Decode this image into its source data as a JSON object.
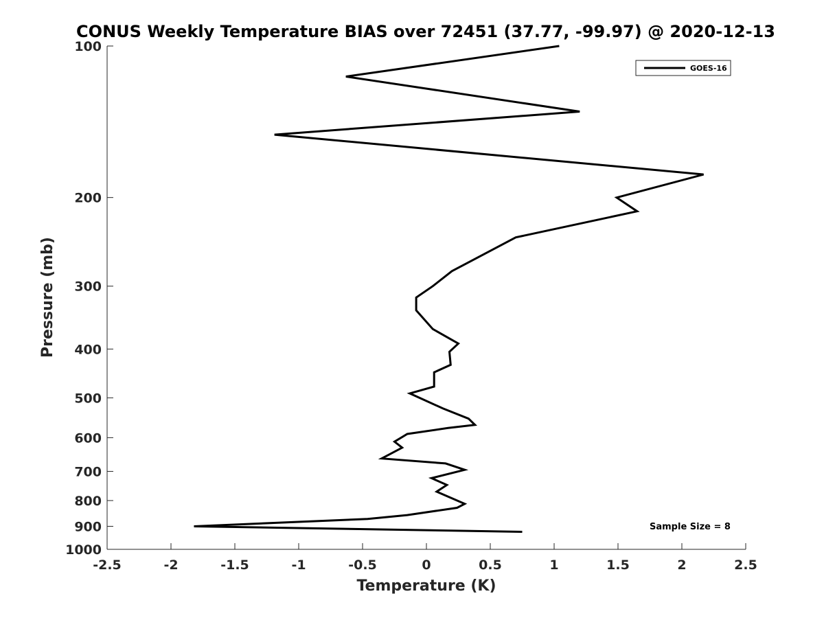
{
  "chart_data": {
    "type": "line",
    "title": "CONUS Weekly Temperature BIAS over 72451 (37.77, -99.97) @ 2020-12-13",
    "xlabel": "Temperature (K)",
    "ylabel": "Pressure (mb)",
    "xlim": [
      -2.5,
      2.5
    ],
    "ylim": [
      100,
      1000
    ],
    "y_scale": "log",
    "y_reversed": true,
    "grid": false,
    "legend_position": "top-right",
    "x_ticks": [
      "-2.5",
      "-2",
      "-1.5",
      "-1",
      "-0.5",
      "0",
      "0.5",
      "1",
      "1.5",
      "2",
      "2.5"
    ],
    "y_ticks": [
      "100",
      "200",
      "300",
      "400",
      "500",
      "600",
      "700",
      "800",
      "900",
      "1000"
    ],
    "series": [
      {
        "name": "GOES-16",
        "color": "#000000",
        "points": [
          [
            1.04,
            100
          ],
          [
            -0.63,
            115
          ],
          [
            1.2,
            135
          ],
          [
            -1.19,
            150
          ],
          [
            2.17,
            180
          ],
          [
            1.49,
            200
          ],
          [
            1.65,
            213
          ],
          [
            0.7,
            240
          ],
          [
            0.2,
            280
          ],
          [
            0.05,
            300
          ],
          [
            -0.08,
            316
          ],
          [
            -0.08,
            335
          ],
          [
            0.05,
            365
          ],
          [
            0.25,
            390
          ],
          [
            0.18,
            405
          ],
          [
            0.19,
            430
          ],
          [
            0.06,
            445
          ],
          [
            0.06,
            475
          ],
          [
            -0.13,
            490
          ],
          [
            0.13,
            525
          ],
          [
            0.33,
            550
          ],
          [
            0.38,
            566
          ],
          [
            0.17,
            574
          ],
          [
            -0.15,
            590
          ],
          [
            -0.25,
            611
          ],
          [
            -0.19,
            628
          ],
          [
            -0.35,
            660
          ],
          [
            0.15,
            675
          ],
          [
            0.3,
            695
          ],
          [
            0.04,
            722
          ],
          [
            0.16,
            745
          ],
          [
            0.08,
            768
          ],
          [
            0.3,
            812
          ],
          [
            0.24,
            827
          ],
          [
            -0.15,
            855
          ],
          [
            -0.46,
            870
          ],
          [
            -1.82,
            900
          ],
          [
            0.75,
            923
          ]
        ]
      }
    ],
    "annotation": "Sample Size = 8"
  }
}
